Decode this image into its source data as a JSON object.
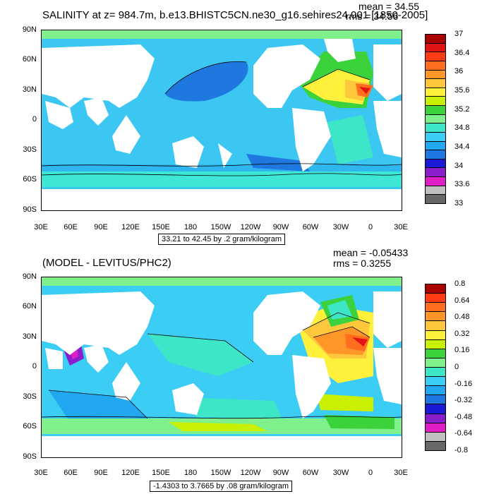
{
  "top": {
    "title": "SALINITY at z= 984.7m, b.e13.BHISTC5CN.ne30_g16.sehires24.001 [1850-2005]",
    "mean": "mean = 34.55",
    "rms": "rms = 34.56",
    "range": "33.21 to 42.45 by .2 gram/kilogram",
    "colorbar_colors": [
      "#676767",
      "#c0c0c0",
      "#e01ec8",
      "#8b1ecc",
      "#1a1ad6",
      "#1e78e0",
      "#22a8f0",
      "#3ccdf5",
      "#3ee6c8",
      "#7ff08c",
      "#3cd23c",
      "#c8f000",
      "#fff03c",
      "#ffc83c",
      "#ff9628",
      "#ff6e1e",
      "#ff3c14",
      "#e01414",
      "#aa0000"
    ],
    "colorbar_labels": [
      "33",
      "33.6",
      "34",
      "34.4",
      "34.8",
      "35.2",
      "35.6",
      "36",
      "36.4",
      "37"
    ]
  },
  "bottom": {
    "title": "(MODEL - LEVITUS/PHC2)",
    "mean": "mean = -0.05433",
    "rms": "rms = 0.3255",
    "range": "-1.4303 to 3.7665 by .08 gram/kilogram",
    "colorbar_colors": [
      "#676767",
      "#c0c0c0",
      "#e01ec8",
      "#8b1ecc",
      "#1a1ad6",
      "#1e78e0",
      "#22a8f0",
      "#3ccdf5",
      "#3ee6c8",
      "#7ff08c",
      "#3cd23c",
      "#c8f000",
      "#fff03c",
      "#ffc83c",
      "#ff9628",
      "#ff6e1e",
      "#ff3c14",
      "#aa0000"
    ],
    "colorbar_labels": [
      "-0.8",
      "-0.64",
      "-0.48",
      "-0.32",
      "-0.16",
      "0",
      "0.16",
      "0.32",
      "0.48",
      "0.64",
      "0.8"
    ]
  },
  "lat_labels": [
    "90N",
    "60N",
    "30N",
    "0",
    "30S",
    "60S",
    "90S"
  ],
  "lon_labels": [
    "30E",
    "60E",
    "90E",
    "120E",
    "150E",
    "180",
    "150W",
    "120W",
    "90W",
    "60W",
    "30W",
    "0",
    "30E"
  ]
}
